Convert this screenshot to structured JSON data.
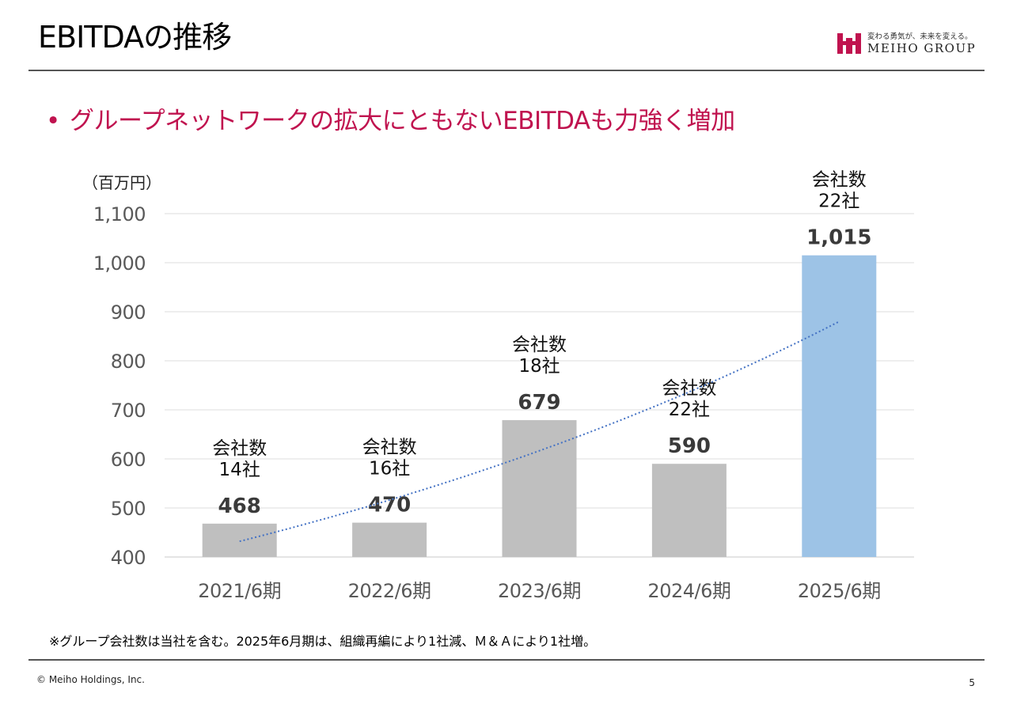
{
  "slide": {
    "title": "EBITDAの推移",
    "headline": "グループネットワークの拡大にともないEBITDAも力強く増加",
    "bullet": "•",
    "footnote": "※グループ会社数は当社を含む。2025年6月期は、組織再編により1社減、Ｍ＆Ａにより1社増。",
    "copyright": "© Meiho Holdings, Inc.",
    "page_number": "5"
  },
  "logo": {
    "tagline": "変わる勇気が、未来を変える。",
    "text": "MEIHO GROUP",
    "color": "#c0134f"
  },
  "colors": {
    "bar_default": "#bfbfbf",
    "bar_highlight": "#9dc3e6",
    "trendline": "#4472c4",
    "headline": "#c0134f"
  },
  "chart_data": {
    "type": "bar",
    "unit_label": "（百万円）",
    "categories": [
      "2021/6期",
      "2022/6期",
      "2023/6期",
      "2024/6期",
      "2025/6期"
    ],
    "values": [
      468,
      470,
      679,
      590,
      1015
    ],
    "value_labels": [
      "468",
      "470",
      "679",
      "590",
      "1,015"
    ],
    "company_count_labels": [
      [
        "会社数",
        "14社"
      ],
      [
        "会社数",
        "16社"
      ],
      [
        "会社数",
        "18社"
      ],
      [
        "会社数",
        "22社"
      ],
      [
        "会社数",
        "22社"
      ]
    ],
    "highlight_index": 4,
    "ylim": [
      400,
      1100
    ],
    "yticks": [
      400,
      500,
      600,
      700,
      800,
      900,
      1000,
      1100
    ],
    "ytick_labels": [
      "400",
      "500",
      "600",
      "700",
      "800",
      "900",
      "1,000",
      "1,100"
    ],
    "trendline": {
      "type": "exponential",
      "style": "dotted",
      "start_value": 432,
      "end_value": 880
    },
    "grid": true,
    "legend": false
  }
}
